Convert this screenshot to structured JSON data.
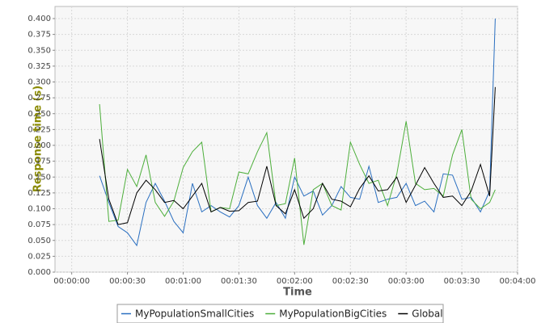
{
  "chart_data": {
    "type": "line",
    "x_label": "Time",
    "y_label": "Response time (s)",
    "x": [
      15,
      20,
      25,
      30,
      35,
      40,
      45,
      50,
      55,
      60,
      65,
      70,
      75,
      80,
      85,
      90,
      95,
      100,
      105,
      110,
      115,
      120,
      125,
      130,
      135,
      140,
      145,
      150,
      155,
      160,
      165,
      170,
      175,
      180,
      185,
      190,
      195,
      200,
      205,
      210,
      215,
      220,
      225,
      228
    ],
    "series": [
      {
        "name": "MyPopulationSmallCities",
        "color": "#2a6fc0",
        "values": [
          0.152,
          0.11,
          0.072,
          0.062,
          0.042,
          0.11,
          0.14,
          0.112,
          0.08,
          0.062,
          0.14,
          0.095,
          0.105,
          0.095,
          0.087,
          0.105,
          0.15,
          0.105,
          0.085,
          0.11,
          0.085,
          0.15,
          0.12,
          0.128,
          0.09,
          0.105,
          0.135,
          0.118,
          0.115,
          0.167,
          0.11,
          0.115,
          0.118,
          0.14,
          0.105,
          0.112,
          0.095,
          0.155,
          0.153,
          0.115,
          0.118,
          0.095,
          0.128,
          0.4
        ]
      },
      {
        "name": "MyPopulationBigCities",
        "color": "#4cae3a",
        "values": [
          0.265,
          0.08,
          0.082,
          0.162,
          0.135,
          0.185,
          0.11,
          0.088,
          0.112,
          0.165,
          0.19,
          0.205,
          0.095,
          0.102,
          0.1,
          0.158,
          0.155,
          0.19,
          0.22,
          0.105,
          0.108,
          0.18,
          0.043,
          0.13,
          0.14,
          0.105,
          0.098,
          0.205,
          0.17,
          0.14,
          0.145,
          0.105,
          0.155,
          0.238,
          0.14,
          0.13,
          0.132,
          0.12,
          0.185,
          0.225,
          0.115,
          0.1,
          0.11,
          0.13
        ]
      },
      {
        "name": "Global",
        "color": "#000000",
        "values": [
          0.21,
          0.115,
          0.075,
          0.078,
          0.125,
          0.145,
          0.13,
          0.11,
          0.113,
          0.1,
          0.12,
          0.14,
          0.095,
          0.102,
          0.096,
          0.097,
          0.11,
          0.112,
          0.167,
          0.105,
          0.092,
          0.13,
          0.085,
          0.1,
          0.14,
          0.115,
          0.112,
          0.103,
          0.132,
          0.152,
          0.128,
          0.13,
          0.15,
          0.11,
          0.137,
          0.165,
          0.14,
          0.118,
          0.12,
          0.105,
          0.128,
          0.17,
          0.12,
          0.292
        ]
      }
    ],
    "xlim": [
      -9,
      240
    ],
    "xticks": [
      {
        "value": 0,
        "label": "00:00:00"
      },
      {
        "value": 30,
        "label": "00:00:30"
      },
      {
        "value": 60,
        "label": "00:01:00"
      },
      {
        "value": 90,
        "label": "00:01:30"
      },
      {
        "value": 120,
        "label": "00:02:00"
      },
      {
        "value": 150,
        "label": "00:02:30"
      },
      {
        "value": 180,
        "label": "00:03:00"
      },
      {
        "value": 210,
        "label": "00:03:30"
      },
      {
        "value": 240,
        "label": "00:04:00"
      }
    ],
    "ylim": [
      0,
      0.4
    ],
    "yticks": [
      {
        "value": 0,
        "label": "0.000"
      },
      0.025,
      {
        "value": 0.05,
        "label": "0.050"
      },
      0.075,
      {
        "value": 0.1,
        "label": "0.100"
      },
      0.125,
      {
        "value": 0.15,
        "label": "0.150"
      },
      0.175,
      {
        "value": 0.2,
        "label": "0.200"
      },
      0.225,
      {
        "value": 0.25,
        "label": "0.250"
      },
      0.275,
      {
        "value": 0.3,
        "label": "0.300"
      },
      0.325,
      {
        "value": 0.35,
        "label": "0.350"
      },
      0.375,
      {
        "value": 0.4,
        "label": "0.400"
      }
    ],
    "grid": true,
    "legend": "bottom"
  }
}
